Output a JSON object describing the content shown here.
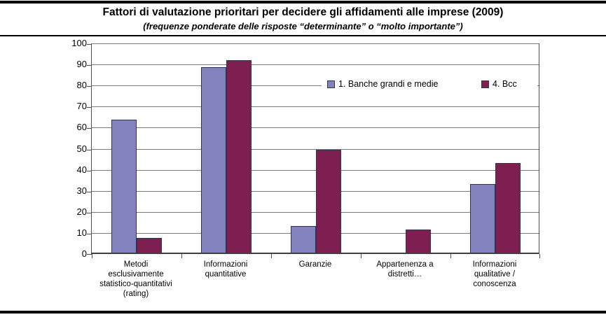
{
  "header": {
    "title": "Fattori di valutazione prioritari per decidere gli affidamenti alle imprese (2009)",
    "subtitle": "(frequenze ponderate delle risposte “determinante” o “molto importante”)"
  },
  "chart_data": {
    "type": "bar",
    "title": "Fattori di valutazione prioritari per decidere gli affidamenti alle imprese (2009)",
    "subtitle": "(frequenze ponderate delle risposte “determinante” o “molto importante”)",
    "categories": [
      "Metodi esclusivamente statistico-quantitativi (rating)",
      "Informazioni quantitative",
      "Garanzie",
      "Appartenenza a distretti…",
      "Informazioni qualitative / conoscenza"
    ],
    "category_lines": [
      [
        "Metodi",
        "esclusivamente",
        "statistico-quantitativi",
        "(rating)"
      ],
      [
        "Informazioni",
        "quantitative"
      ],
      [
        "Garanzie"
      ],
      [
        "Appartenenza a",
        "distretti…"
      ],
      [
        "Informazioni",
        "qualitative /",
        "conoscenza"
      ]
    ],
    "series": [
      {
        "name": "1. Banche grandi e medie",
        "color": "#8382BE",
        "values": [
          63,
          88,
          12.5,
          0,
          32.5
        ]
      },
      {
        "name": "4. Bcc",
        "color": "#7E1F52",
        "values": [
          7,
          91.5,
          49,
          11,
          42.5
        ]
      }
    ],
    "ylim": [
      0,
      100
    ],
    "yticks": [
      0,
      10,
      20,
      30,
      40,
      50,
      60,
      70,
      80,
      90,
      100
    ],
    "grid": true,
    "legend_position": "inside-top-right",
    "colors": {
      "bar_border": "#33334D",
      "gridline": "#7A7A7A",
      "axis": "#4D4D4D",
      "rule": "#000000"
    }
  }
}
